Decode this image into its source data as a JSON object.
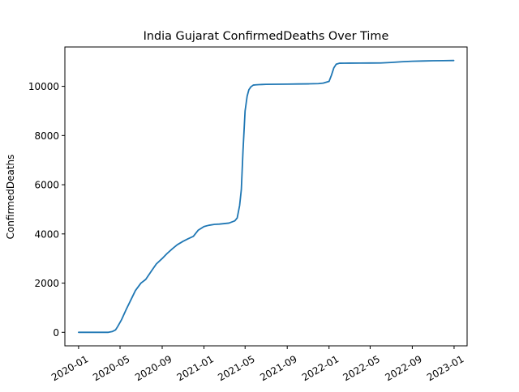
{
  "chart_data": {
    "type": "line",
    "title": "India Gujarat ConfirmedDeaths Over Time",
    "xlabel": "",
    "ylabel": "ConfirmedDeaths",
    "grid": false,
    "legend": "none",
    "line_color": "#1f77b4",
    "xlim": [
      "2019-11-22",
      "2023-02-08"
    ],
    "ylim": [
      -550,
      11600
    ],
    "x_ticks": [
      "2020-01",
      "2020-05",
      "2020-09",
      "2021-01",
      "2021-05",
      "2021-09",
      "2022-01",
      "2022-05",
      "2022-09",
      "2023-01"
    ],
    "y_ticks": [
      0,
      2000,
      4000,
      6000,
      8000,
      10000
    ],
    "y_tick_labels": [
      "0",
      "2000",
      "4000",
      "6000",
      "8000",
      "10000"
    ],
    "series": [
      {
        "x": [
          "2020-01-01",
          "2020-03-10",
          "2020-03-28",
          "2020-04-08",
          "2020-04-18",
          "2020-04-24",
          "2020-05-05",
          "2020-05-18",
          "2020-06-01",
          "2020-06-15",
          "2020-07-01",
          "2020-07-15",
          "2020-08-01",
          "2020-08-15",
          "2020-09-01",
          "2020-09-15",
          "2020-10-01",
          "2020-10-15",
          "2020-11-01",
          "2020-11-15",
          "2020-12-01",
          "2020-12-15",
          "2021-01-01",
          "2021-01-15",
          "2021-02-01",
          "2021-02-15",
          "2021-03-01",
          "2021-03-15",
          "2021-04-01",
          "2021-04-08",
          "2021-04-15",
          "2021-04-20",
          "2021-04-25",
          "2021-05-01",
          "2021-05-07",
          "2021-05-12",
          "2021-05-18",
          "2021-05-25",
          "2021-06-01",
          "2021-06-10",
          "2021-06-20",
          "2021-07-01",
          "2021-08-01",
          "2021-09-01",
          "2021-10-01",
          "2021-11-01",
          "2021-12-01",
          "2021-12-15",
          "2022-01-01",
          "2022-01-08",
          "2022-01-15",
          "2022-01-22",
          "2022-02-01",
          "2022-02-15",
          "2022-03-01",
          "2022-04-01",
          "2022-05-01",
          "2022-06-01",
          "2022-07-01",
          "2022-08-01",
          "2022-09-01",
          "2022-10-01",
          "2022-11-01",
          "2022-12-01",
          "2022-12-31"
        ],
        "y": [
          0,
          0,
          0,
          30,
          100,
          230,
          500,
          900,
          1300,
          1700,
          2000,
          2150,
          2500,
          2780,
          3000,
          3200,
          3400,
          3560,
          3700,
          3800,
          3900,
          4150,
          4300,
          4350,
          4390,
          4400,
          4420,
          4440,
          4530,
          4650,
          5150,
          5800,
          7400,
          9000,
          9600,
          9860,
          9980,
          10050,
          10060,
          10070,
          10075,
          10080,
          10085,
          10090,
          10095,
          10100,
          10110,
          10130,
          10200,
          10450,
          10750,
          10900,
          10940,
          10942,
          10944,
          10946,
          10948,
          10950,
          10970,
          11000,
          11020,
          11030,
          11040,
          11045,
          11050
        ]
      }
    ]
  }
}
